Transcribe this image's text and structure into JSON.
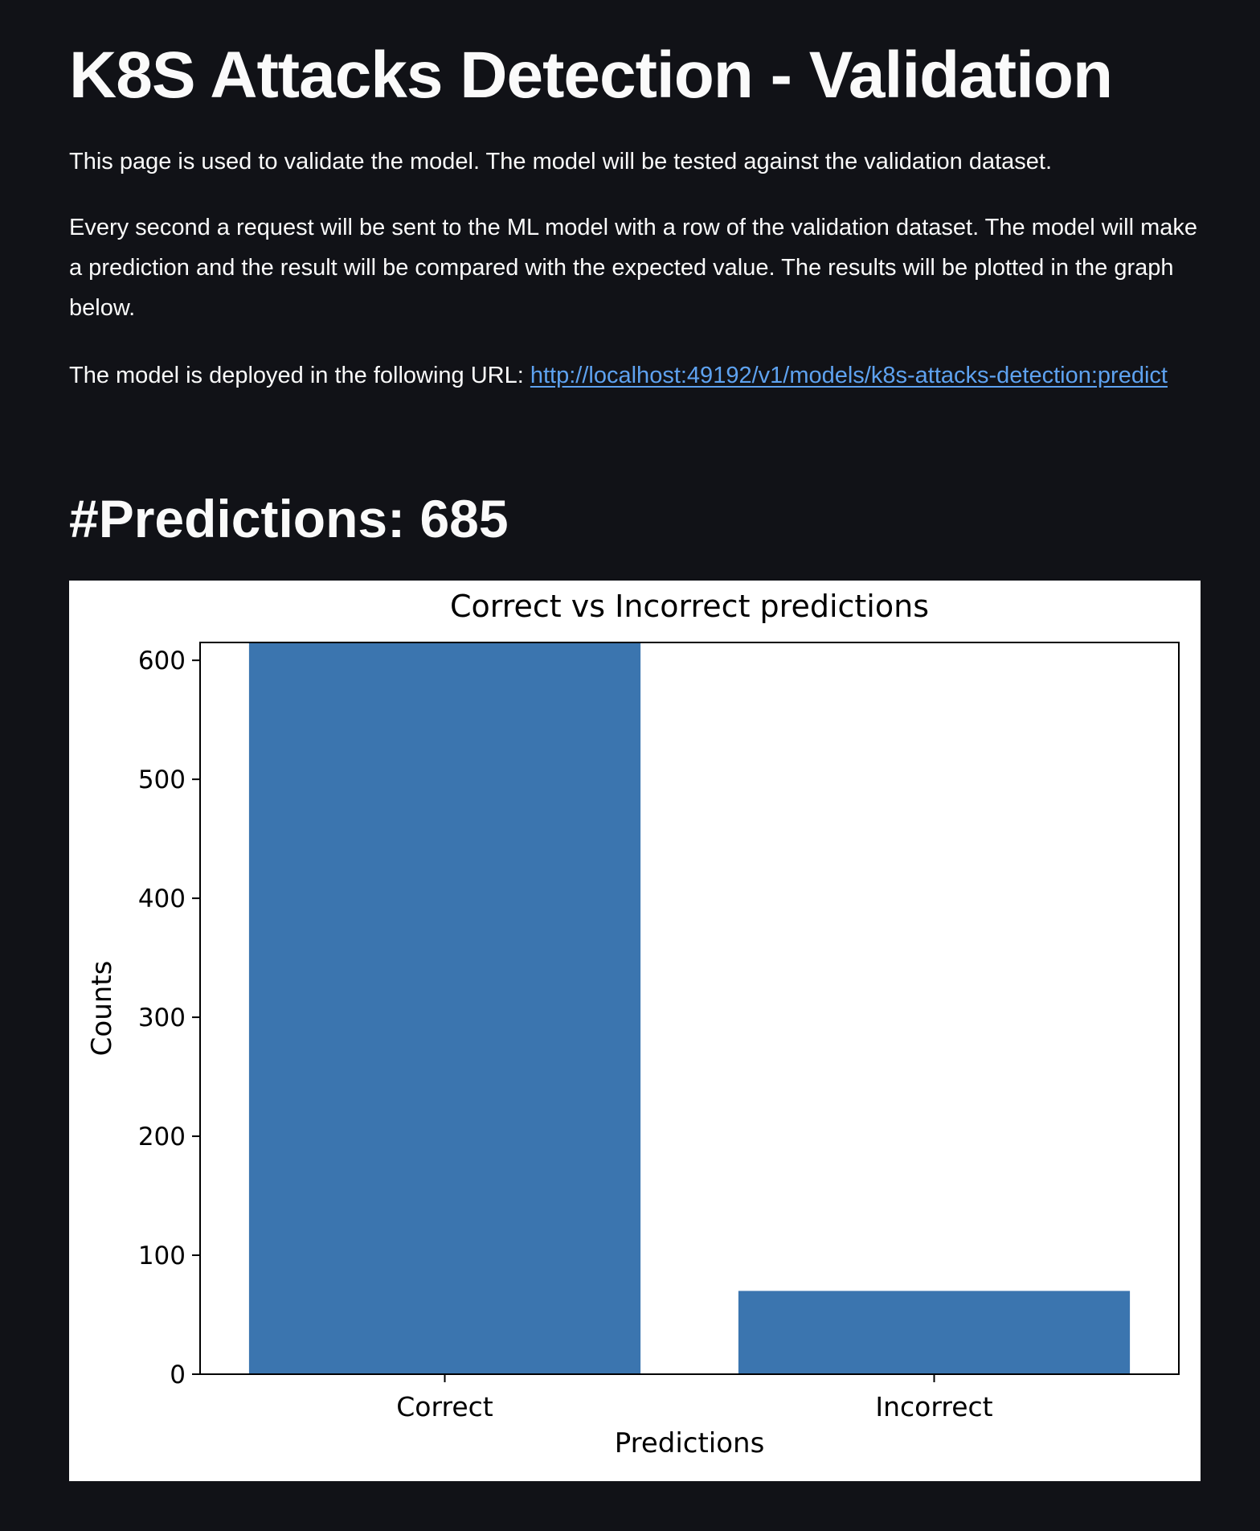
{
  "page": {
    "title": "K8S Attacks Detection - Validation",
    "intro": "This page is used to validate the model. The model will be tested against the validation dataset.",
    "description": "Every second a request will be sent to the ML model with a row of the validation dataset. The model will make a prediction and the result will be compared with the expected value. The results will be plotted in the graph below.",
    "url_label": "The model is deployed in the following URL:",
    "url": "http://localhost:49192/v1/models/k8s-attacks-detection:predict",
    "predictions_heading": "#Predictions: 685"
  },
  "colors": {
    "background": "#111217",
    "text": "#fafafa",
    "link": "#5ea2f0",
    "bar": "#3b75af"
  },
  "chart_data": {
    "type": "bar",
    "title": "Correct vs Incorrect predictions",
    "xlabel": "Predictions",
    "ylabel": "Counts",
    "categories": [
      "Correct",
      "Incorrect"
    ],
    "values": [
      615,
      70
    ],
    "ylim": [
      0,
      615
    ],
    "yticks": [
      0,
      100,
      200,
      300,
      400,
      500,
      600
    ],
    "grid": false
  }
}
